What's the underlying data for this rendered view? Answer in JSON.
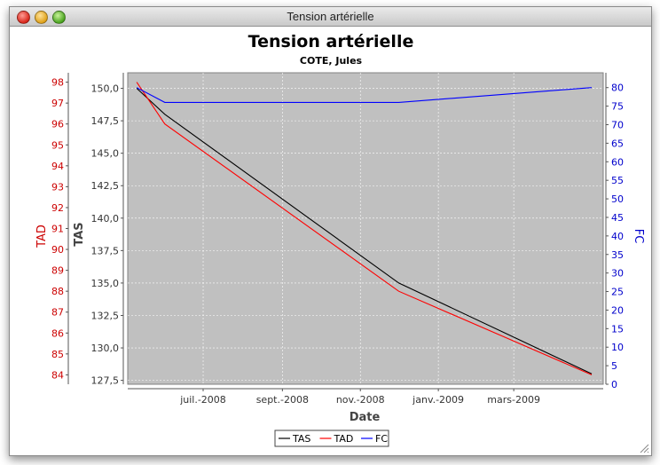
{
  "window": {
    "title": "Tension artérielle"
  },
  "chart_data": {
    "type": "line",
    "title": "Tension artérielle",
    "subtitle": "COTE, Jules",
    "xlabel": "Date",
    "x_tick_labels": [
      "juil.-2008",
      "sept.-2008",
      "nov.-2008",
      "janv.-2009",
      "mars-2009"
    ],
    "x_tick_dates": [
      "2008-07-01",
      "2008-09-01",
      "2008-11-01",
      "2009-01-01",
      "2009-03-01"
    ],
    "xlim": [
      "2008-05-03",
      "2009-05-10"
    ],
    "x": [
      "2008-05-10",
      "2008-06-01",
      "2008-12-01",
      "2009-05-01"
    ],
    "axes": {
      "TAS": {
        "label": "TAS",
        "position": "left-inner",
        "range": [
          127.2,
          151.2
        ],
        "ticks": [
          127.5,
          130.0,
          132.5,
          135.0,
          137.5,
          140.0,
          142.5,
          145.0,
          147.5,
          150.0
        ],
        "tick_labels": [
          "127,5",
          "130,0",
          "132,5",
          "135,0",
          "137,5",
          "140,0",
          "142,5",
          "145,0",
          "147,5",
          "150,0"
        ],
        "color": "#333333"
      },
      "TAD": {
        "label": "TAD",
        "position": "left-outer",
        "range": [
          83.55,
          98.45
        ],
        "ticks": [
          84,
          85,
          86,
          87,
          88,
          89,
          90,
          91,
          92,
          93,
          94,
          95,
          96,
          97,
          98
        ],
        "tick_labels": [
          "84",
          "85",
          "86",
          "87",
          "88",
          "89",
          "90",
          "91",
          "92",
          "93",
          "94",
          "95",
          "96",
          "97",
          "98"
        ],
        "color": "#cc0000"
      },
      "FC": {
        "label": "FC",
        "position": "right",
        "range": [
          0,
          84
        ],
        "ticks": [
          0,
          5,
          10,
          15,
          20,
          25,
          30,
          35,
          40,
          45,
          50,
          55,
          60,
          65,
          70,
          75,
          80
        ],
        "tick_labels": [
          "0",
          "5",
          "10",
          "15",
          "20",
          "25",
          "30",
          "35",
          "40",
          "45",
          "50",
          "55",
          "60",
          "65",
          "70",
          "75",
          "80"
        ],
        "color": "#0000cc"
      }
    },
    "series": [
      {
        "name": "TAS",
        "axis": "TAS",
        "color": "#000000",
        "values": [
          150,
          148,
          135,
          128
        ]
      },
      {
        "name": "TAD",
        "axis": "TAD",
        "color": "#ff0000",
        "values": [
          98,
          96,
          88,
          84
        ]
      },
      {
        "name": "FC",
        "axis": "FC",
        "color": "#0000ff",
        "values": [
          80,
          76,
          76,
          80
        ]
      }
    ],
    "grid": true,
    "plot_background": "#c0c0c0",
    "legend_placement": "bottom-center"
  }
}
